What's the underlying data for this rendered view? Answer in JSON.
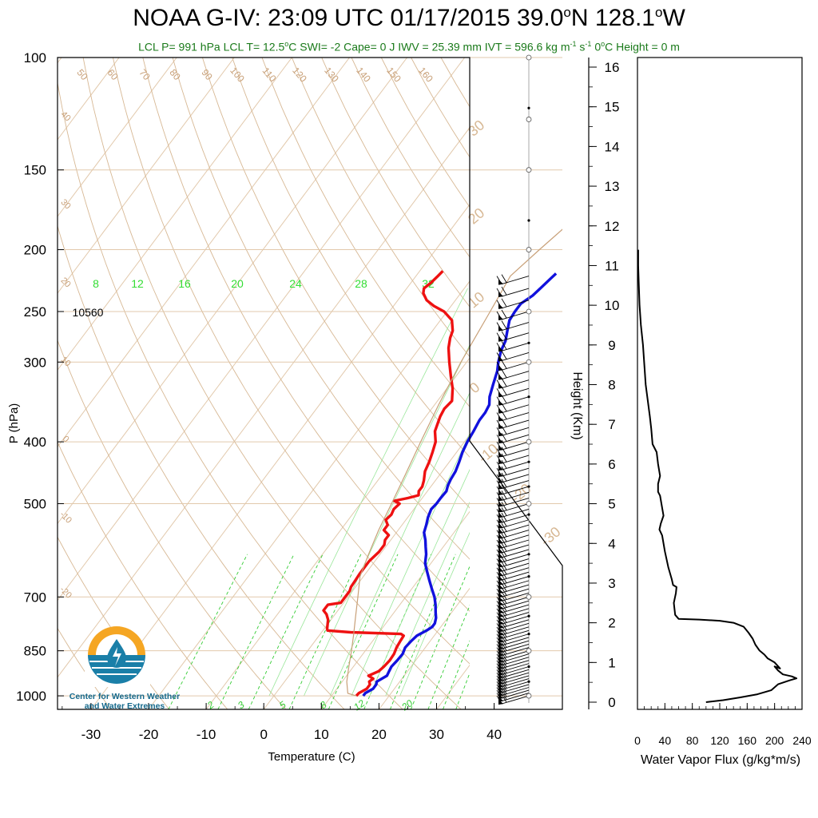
{
  "title": {
    "prefix": "NOAA G-IV: 23:09 UTC 01/17/2015  39.0",
    "deg1": "o",
    "mid": "N 128.1",
    "deg2": "o",
    "suffix": "W"
  },
  "subtitle": {
    "part1": "LCL P= 991 hPa  LCL T= 12.5",
    "deg": "o",
    "part2": "C  SWI= -2  Cape= 0 J  IWV = 25.39 mm  IVT = 596.6 kg m",
    "exp1": "-1",
    "part3": " s",
    "exp2": "-1",
    "part4": "  0",
    "deg2": "o",
    "part5": "C Height = 0 m"
  },
  "logo": {
    "line1": "Center for Western Weather",
    "line2": "and Water Extremes"
  },
  "colors": {
    "temperature": "#ee1111",
    "dewpoint": "#1111dd",
    "dry_adiabat": "#c8a078",
    "mixing_ratio": "#33cc33",
    "parcel": "#c8a078",
    "subtitle": "#1a7a1a",
    "logo_orange": "#f5a623",
    "logo_blue": "#1a7fa8"
  },
  "chart_data": [
    {
      "type": "line",
      "name": "skew-t",
      "xlabel": "Temperature (C)",
      "ylabel": "P (hPa)",
      "x_ticks": [
        "-30",
        "-20",
        "-10",
        "0",
        "10",
        "20",
        "30",
        "40"
      ],
      "y_ticks": [
        "100",
        "150",
        "200",
        "250",
        "300",
        "400",
        "500",
        "700",
        "850",
        "1000"
      ],
      "xlim": [
        -34,
        40
      ],
      "ylim": [
        1050,
        100
      ],
      "log_pressure": true,
      "annotation": "10560",
      "mixing_ratio_labels_top": [
        "8",
        "12",
        "16",
        "20",
        "24",
        "28",
        "32"
      ],
      "mixing_ratio_labels_bottom": [
        "2",
        "3",
        "5",
        "8",
        "12",
        "20"
      ],
      "dry_adiabat_labels": [
        "50",
        "60",
        "70",
        "80",
        "90",
        "100",
        "110",
        "120",
        "130",
        "140",
        "150",
        "160"
      ],
      "left_adiabat_labels": [
        "40",
        "30",
        "20",
        "10",
        "0",
        "-10",
        "-20"
      ],
      "right_adiabat_labels": [
        "30",
        "20",
        "10",
        "0",
        "-10",
        "-20",
        "-30"
      ],
      "series": [
        {
          "name": "",
          "key": "temperature",
          "points": [
            [
              14.3,
              1000
            ],
            [
              14.4,
              990
            ],
            [
              15.2,
              975
            ],
            [
              15.2,
              960
            ],
            [
              14.7,
              950
            ],
            [
              15.0,
              940
            ],
            [
              13.8,
              930
            ],
            [
              15.0,
              915
            ],
            [
              15.3,
              900
            ],
            [
              15.5,
              880
            ],
            [
              15.4,
              860
            ],
            [
              15.0,
              840
            ],
            [
              14.8,
              820
            ],
            [
              14.7,
              805
            ],
            [
              14.0,
              800
            ],
            [
              5.0,
              795
            ],
            [
              0.8,
              790
            ],
            [
              0.5,
              785
            ],
            [
              0.1,
              775
            ],
            [
              -0.5,
              760
            ],
            [
              -1.5,
              745
            ],
            [
              -2.5,
              735
            ],
            [
              -2.5,
              720
            ],
            [
              -0.5,
              715
            ],
            [
              -0.5,
              700
            ],
            [
              -0.5,
              685
            ],
            [
              -0.8,
              675
            ],
            [
              -0.9,
              660
            ],
            [
              -1.0,
              645
            ],
            [
              -1.0,
              630
            ],
            [
              -1.0,
              615
            ],
            [
              -0.5,
              595
            ],
            [
              -0.5,
              580
            ],
            [
              -1.0,
              570
            ],
            [
              -1.0,
              560
            ],
            [
              -2.5,
              550
            ],
            [
              -2.5,
              540
            ],
            [
              -3.5,
              530
            ],
            [
              -3.2,
              520
            ],
            [
              -3.5,
              510
            ],
            [
              -3.2,
              500
            ],
            [
              -4.5,
              495
            ],
            [
              -2.5,
              490
            ],
            [
              -1.0,
              485
            ],
            [
              -1.5,
              478
            ],
            [
              -1.5,
              470
            ],
            [
              -2.0,
              460
            ],
            [
              -3.0,
              445
            ],
            [
              -3.5,
              430
            ],
            [
              -4.2,
              415
            ],
            [
              -5.0,
              400
            ],
            [
              -6.5,
              385
            ],
            [
              -7.0,
              375
            ],
            [
              -7.5,
              365
            ],
            [
              -7.8,
              355
            ],
            [
              -7.5,
              345
            ],
            [
              -9.0,
              330
            ],
            [
              -11.0,
              315
            ],
            [
              -13.0,
              300
            ],
            [
              -15.0,
              285
            ],
            [
              -16.0,
              275
            ],
            [
              -16.5,
              268
            ],
            [
              -18.0,
              258
            ],
            [
              -20.5,
              250
            ],
            [
              -23.0,
              245
            ],
            [
              -25.0,
              240
            ],
            [
              -26.5,
              234
            ],
            [
              -27.0,
              230
            ],
            [
              -26.5,
              225
            ],
            [
              -26.2,
              220
            ],
            [
              -26.0,
              216
            ]
          ]
        },
        {
          "name": "",
          "key": "dewpoint",
          "points": [
            [
              15.5,
              1000
            ],
            [
              15.5,
              990
            ],
            [
              16.3,
              975
            ],
            [
              16.3,
              960
            ],
            [
              16.0,
              950
            ],
            [
              17.0,
              930
            ],
            [
              16.8,
              915
            ],
            [
              16.6,
              900
            ],
            [
              16.8,
              880
            ],
            [
              16.9,
              860
            ],
            [
              16.5,
              840
            ],
            [
              16.7,
              820
            ],
            [
              17.0,
              805
            ],
            [
              18.0,
              790
            ],
            [
              18.5,
              780
            ],
            [
              18.5,
              770
            ],
            [
              18.0,
              755
            ],
            [
              17.2,
              740
            ],
            [
              16.2,
              720
            ],
            [
              15.0,
              700
            ],
            [
              13.5,
              680
            ],
            [
              12.0,
              660
            ],
            [
              10.5,
              640
            ],
            [
              9.0,
              620
            ],
            [
              8.0,
              600
            ],
            [
              7.0,
              585
            ],
            [
              6.0,
              570
            ],
            [
              4.8,
              555
            ],
            [
              4.2,
              540
            ],
            [
              3.5,
              525
            ],
            [
              3.0,
              510
            ],
            [
              3.2,
              500
            ],
            [
              3.2,
              490
            ],
            [
              3.3,
              478
            ],
            [
              2.8,
              468
            ],
            [
              2.5,
              458
            ],
            [
              2.3,
              445
            ],
            [
              1.7,
              430
            ],
            [
              1.0,
              415
            ],
            [
              0.5,
              400
            ],
            [
              0.2,
              385
            ],
            [
              -0.2,
              370
            ],
            [
              -0.2,
              360
            ],
            [
              -0.5,
              350
            ],
            [
              -1.5,
              340
            ],
            [
              -2.5,
              325
            ],
            [
              -3.5,
              310
            ],
            [
              -4.5,
              300
            ],
            [
              -5.5,
              288
            ],
            [
              -6.0,
              278
            ],
            [
              -7.0,
              268
            ],
            [
              -8.0,
              258
            ],
            [
              -8.2,
              250
            ],
            [
              -8.2,
              243
            ],
            [
              -7.2,
              236
            ],
            [
              -6.8,
              230
            ],
            [
              -6.3,
              222
            ],
            [
              -6.0,
              218
            ]
          ]
        },
        {
          "name": "",
          "key": "parcel",
          "points": [
            [
              14.3,
              1000
            ],
            [
              12.5,
              991
            ],
            [
              10.8,
              950
            ],
            [
              9.2,
              900
            ],
            [
              7.6,
              850
            ],
            [
              5.8,
              800
            ],
            [
              3.8,
              750
            ],
            [
              1.7,
              700
            ],
            [
              -0.6,
              650
            ],
            [
              -2.0,
              600
            ],
            [
              -3.4,
              550
            ],
            [
              -4.6,
              500
            ],
            [
              -6.0,
              450
            ],
            [
              -7.6,
              400
            ],
            [
              -9.3,
              350
            ],
            [
              -11.0,
              300
            ],
            [
              -12.5,
              250
            ],
            [
              -13.6,
              220
            ],
            [
              -12.0,
              200
            ],
            [
              -9.0,
              170
            ],
            [
              -5.0,
              140
            ],
            [
              0.0,
              115
            ],
            [
              4.0,
              100
            ]
          ]
        }
      ],
      "wind_barbs_levels_hPa": [
        220,
        230,
        240,
        250,
        260,
        270,
        280,
        290,
        300,
        310,
        320,
        330,
        340,
        350,
        360,
        370,
        380,
        390,
        400,
        410,
        420,
        430,
        440,
        450,
        460,
        470,
        480,
        490,
        500,
        510,
        520,
        530,
        540,
        550,
        560,
        570,
        580,
        590,
        600,
        610,
        620,
        630,
        640,
        650,
        660,
        670,
        680,
        690,
        700,
        710,
        720,
        730,
        740,
        750,
        760,
        770,
        780,
        790,
        800,
        810,
        820,
        830,
        840,
        850,
        860,
        870,
        880,
        890,
        900,
        910,
        920,
        930,
        940,
        950,
        960,
        970,
        980,
        990,
        1000
      ],
      "height_axis": {
        "label": "Height (Km)",
        "ticks": [
          "0",
          "1",
          "2",
          "3",
          "4",
          "5",
          "6",
          "7",
          "8",
          "9",
          "10",
          "11",
          "12",
          "13",
          "14",
          "15",
          "16"
        ]
      }
    },
    {
      "type": "line",
      "name": "water-vapor-flux",
      "xlabel": "Water Vapor Flux (g/kg*m/s)",
      "ylabel": "",
      "xlim": [
        0,
        240
      ],
      "ylim": [
        -0.2,
        16.4
      ],
      "x_ticks": [
        "0",
        "40",
        "80",
        "120",
        "160",
        "200",
        "240"
      ],
      "series": [
        {
          "name": "",
          "points": [
            [
              100,
              0.0
            ],
            [
              125,
              0.05
            ],
            [
              150,
              0.12
            ],
            [
              175,
              0.2
            ],
            [
              195,
              0.3
            ],
            [
              205,
              0.45
            ],
            [
              222,
              0.55
            ],
            [
              232,
              0.6
            ],
            [
              225,
              0.65
            ],
            [
              212,
              0.7
            ],
            [
              205,
              0.8
            ],
            [
              200,
              0.9
            ],
            [
              208,
              0.85
            ],
            [
              200,
              1.0
            ],
            [
              190,
              1.1
            ],
            [
              185,
              1.2
            ],
            [
              178,
              1.3
            ],
            [
              172,
              1.45
            ],
            [
              168,
              1.6
            ],
            [
              162,
              1.75
            ],
            [
              155,
              1.9
            ],
            [
              140,
              2.0
            ],
            [
              120,
              2.05
            ],
            [
              90,
              2.08
            ],
            [
              60,
              2.1
            ],
            [
              55,
              2.2
            ],
            [
              53,
              2.5
            ],
            [
              56,
              2.75
            ],
            [
              57,
              2.9
            ],
            [
              52,
              2.95
            ],
            [
              50,
              3.1
            ],
            [
              45,
              3.4
            ],
            [
              40,
              3.8
            ],
            [
              36,
              4.2
            ],
            [
              32,
              4.35
            ],
            [
              34,
              4.5
            ],
            [
              38,
              4.7
            ],
            [
              35,
              5.0
            ],
            [
              33,
              5.2
            ],
            [
              30,
              5.3
            ],
            [
              30,
              5.5
            ],
            [
              33,
              5.7
            ],
            [
              30,
              6.0
            ],
            [
              28,
              6.3
            ],
            [
              22,
              6.5
            ],
            [
              20,
              6.9
            ],
            [
              18,
              7.2
            ],
            [
              15,
              7.6
            ],
            [
              12,
              8.0
            ],
            [
              10,
              8.5
            ],
            [
              8,
              9.0
            ],
            [
              5,
              9.5
            ],
            [
              3,
              10.0
            ],
            [
              2,
              10.5
            ],
            [
              1,
              11.0
            ],
            [
              1,
              11.4
            ]
          ]
        }
      ]
    }
  ]
}
